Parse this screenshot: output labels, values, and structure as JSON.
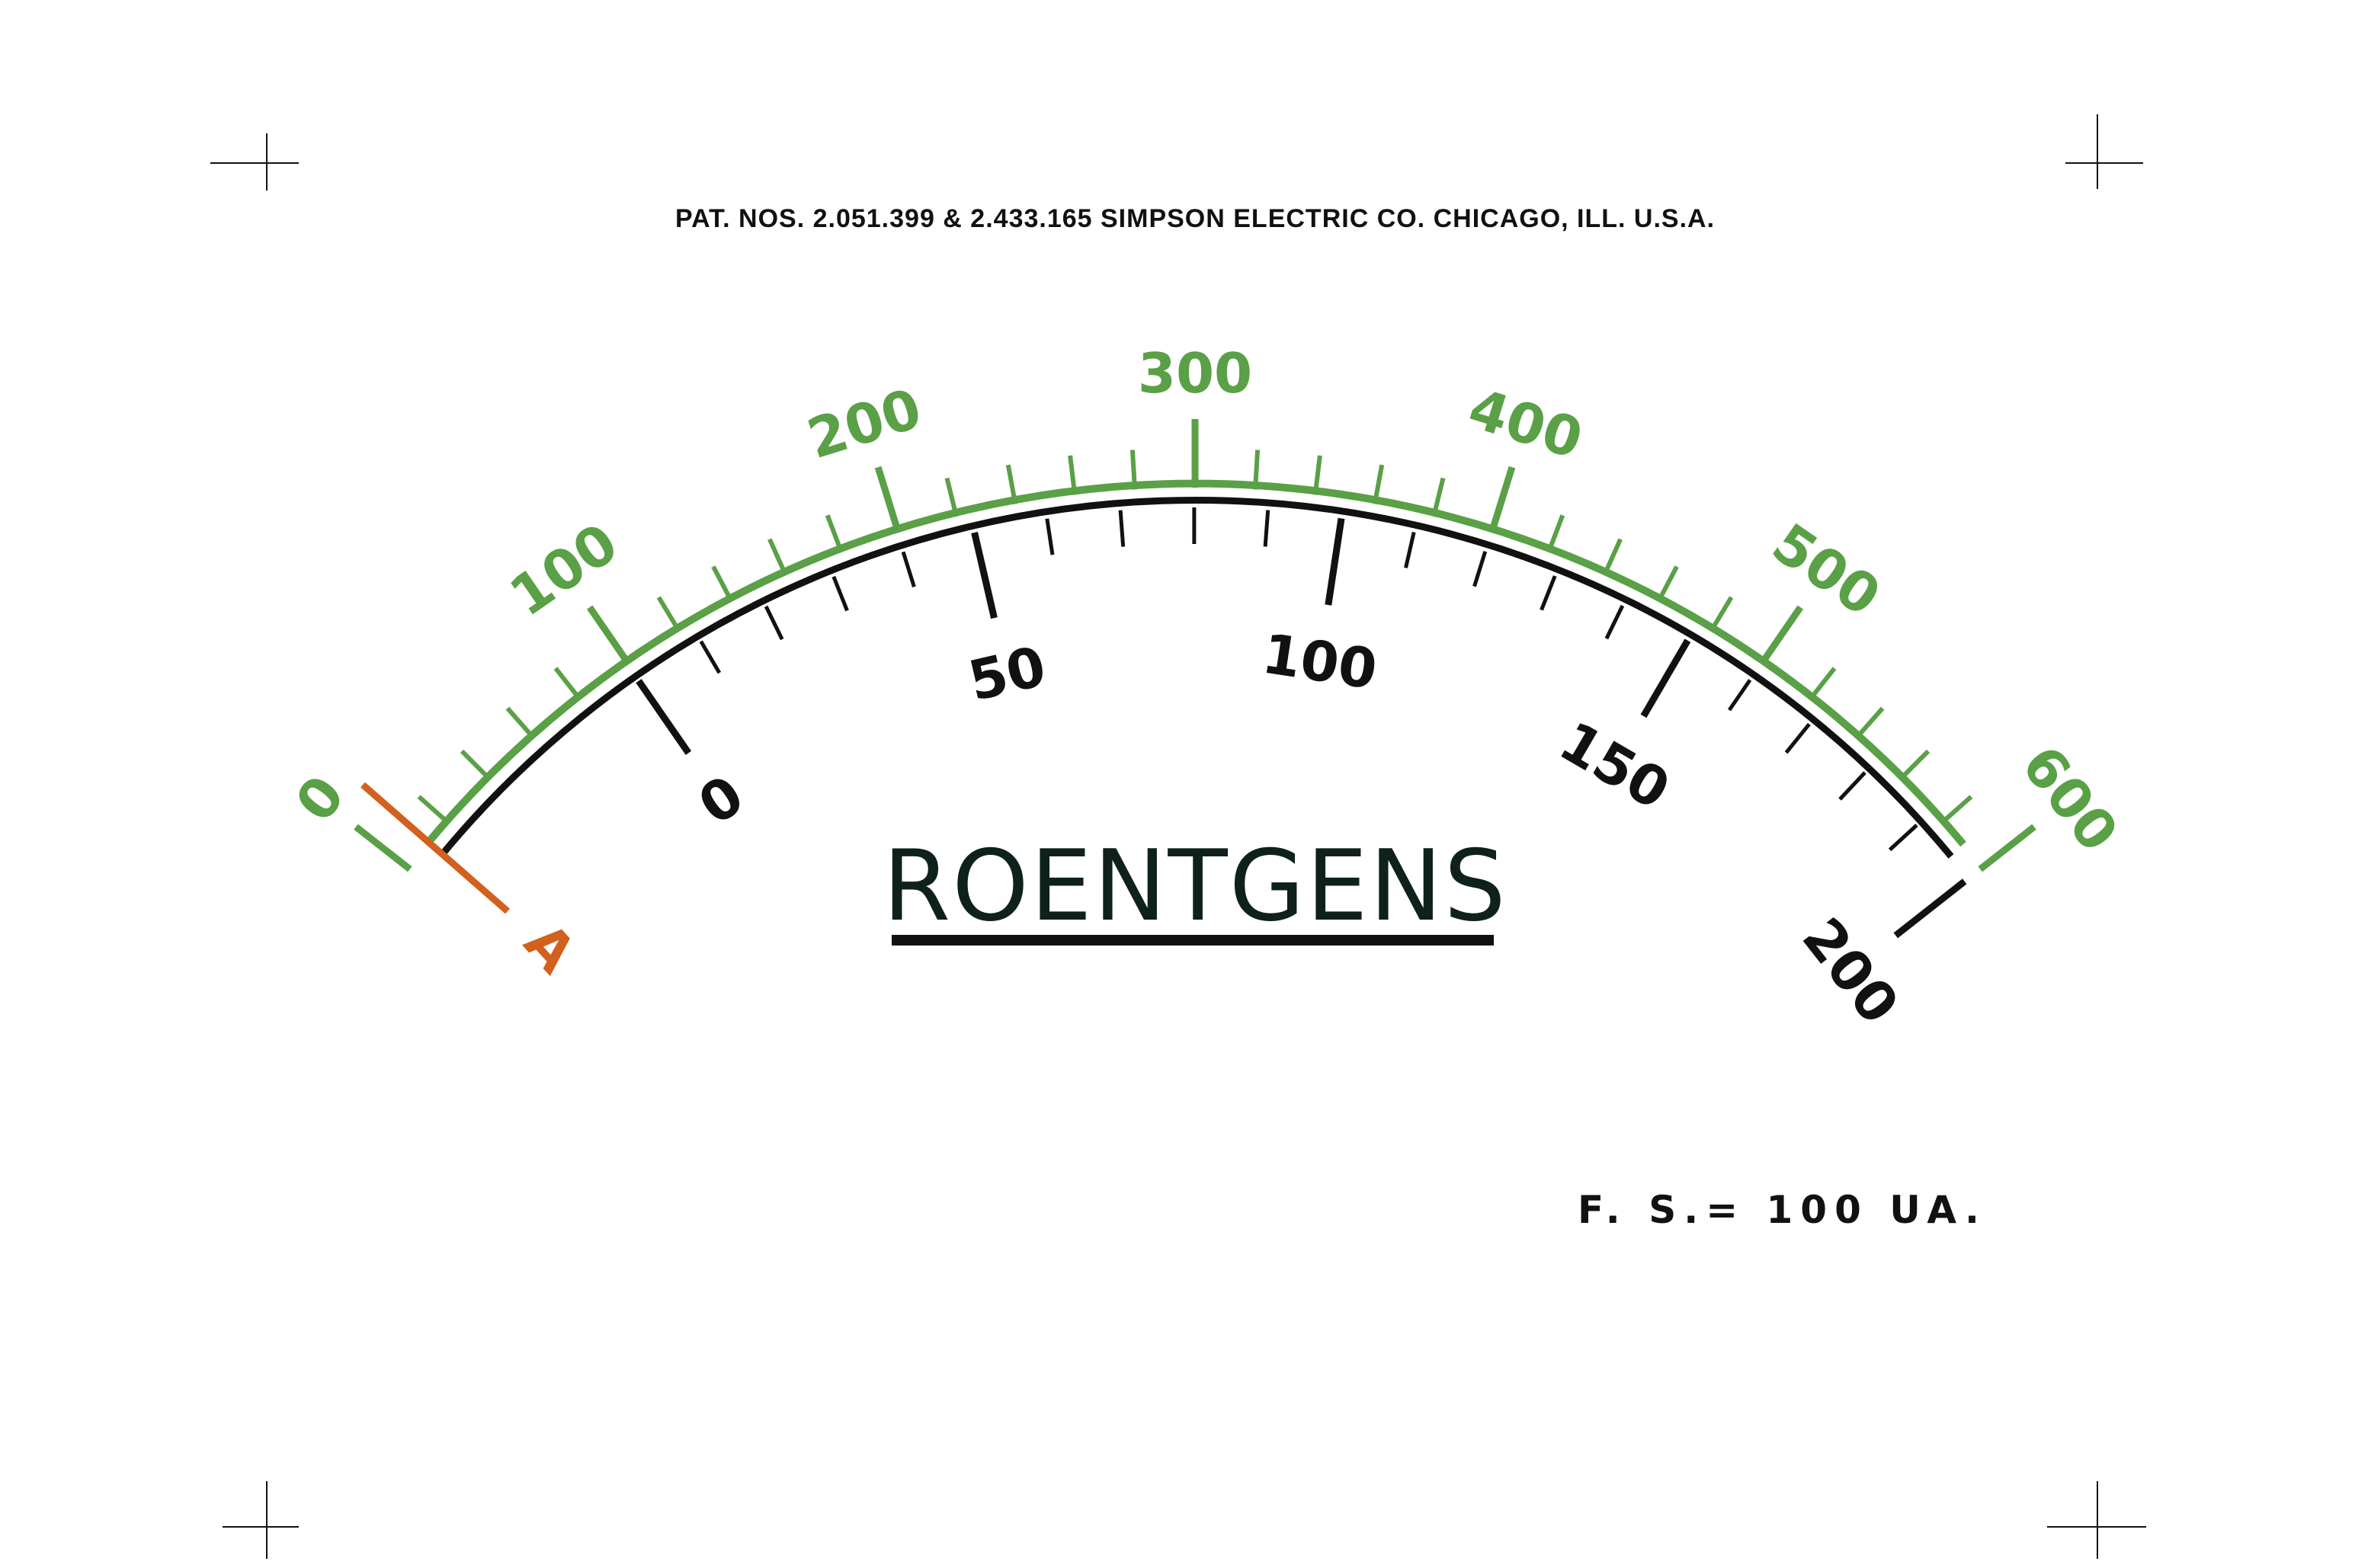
{
  "header": {
    "patent_text": "PAT. NOS. 2.051.399 & 2.433.165 SIMPSON ELECTRIC CO. CHICAGO, ILL. U.S.A."
  },
  "title": "ROENTGENS",
  "full_scale_note": "F. S.= 100 UA.",
  "zero_adjust_label": "A",
  "outer_scale": {
    "labels": [
      "0",
      "100",
      "200",
      "300",
      "400",
      "500",
      "600"
    ],
    "color": "#5aa046"
  },
  "inner_scale": {
    "labels": [
      "0",
      "50",
      "100",
      "150",
      "200"
    ],
    "color": "#111111"
  },
  "colors": {
    "accent_green": "#5aa046",
    "zero_mark_orange": "#d2601e",
    "title": "#0e211b",
    "ink": "#111111"
  }
}
